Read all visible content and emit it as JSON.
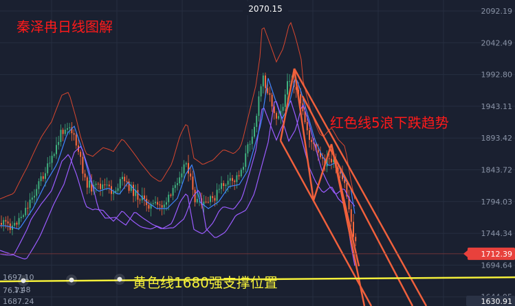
{
  "title": "秦泽冉日线图解",
  "annotations": {
    "red_trend": "红色线5浪下跌趋势",
    "yellow_support": "黄色线1680强支撑位置"
  },
  "colors": {
    "background": "#1a2030",
    "grid": "#262e40",
    "title_red": "#ff1a1a",
    "trend_orange": "#f0603c",
    "support_yellow": "#f5f03a",
    "ma_blue": "#3f86ff",
    "ma_purple": "#9b5cff",
    "band_red": "#d9472f",
    "candle_up": "#3fb27f",
    "candle_down": "#ff6a3d"
  },
  "chart_data": {
    "type": "candlestick",
    "y_range": [
      1630.91,
      2092.19
    ],
    "y_ticks": [
      "2092.19",
      "2042.49",
      "1992.80",
      "1943.11",
      "1893.42",
      "1843.72",
      "1794.03",
      "1744.34",
      "1694.64",
      "1644.95"
    ],
    "price_tag": "1712.39",
    "bottom_tag": "1630.91",
    "high_label": "2070.15",
    "left_values": [
      "1697.10",
      "76.71",
      "1.48",
      "1687.24"
    ],
    "support_level": 1680
  }
}
